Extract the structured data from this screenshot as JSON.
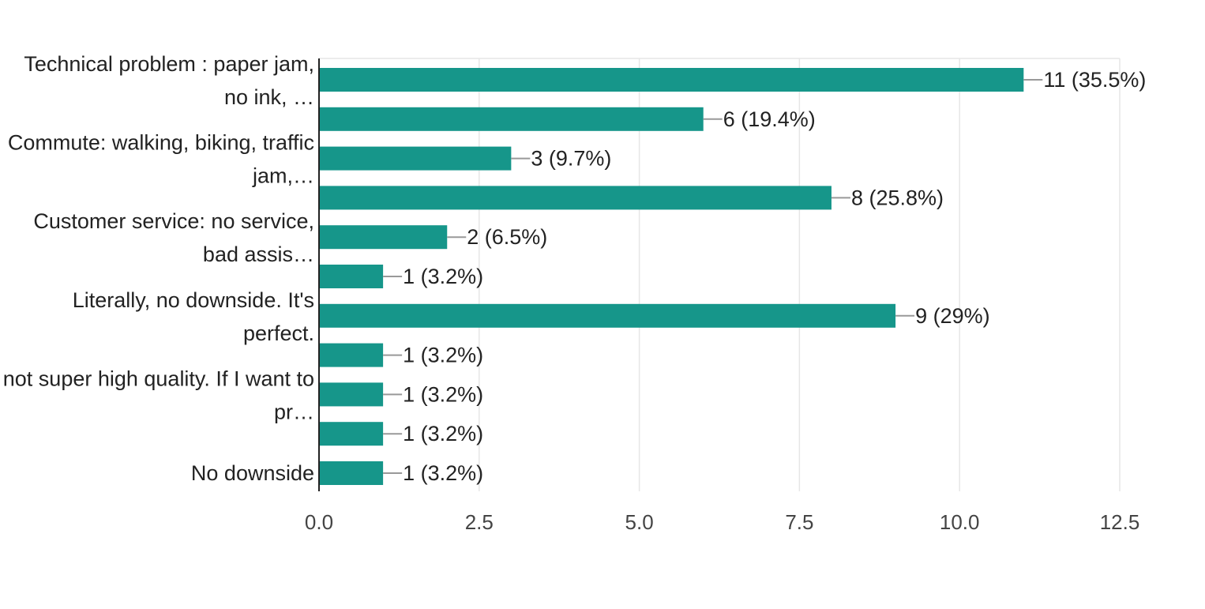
{
  "chart_data": {
    "type": "bar",
    "orientation": "horizontal",
    "categories": [
      "Technical problem : paper jam, no ink, …",
      "",
      "Commute: walking, biking, traffic jam,…",
      "",
      "Customer service: no service, bad assis…",
      "",
      "Literally, no downside. It's perfect.",
      "",
      "not super high quality. If I want to pr…",
      "",
      "No downside"
    ],
    "category_label_lines": [
      [
        "Technical problem : paper jam,",
        "no ink, …"
      ],
      [],
      [
        "Commute: walking, biking, traffic",
        "jam,…"
      ],
      [],
      [
        "Customer service: no service,",
        "bad assis…"
      ],
      [],
      [
        "Literally, no downside. It's",
        "perfect."
      ],
      [],
      [
        "not super high quality. If I want to",
        "pr…"
      ],
      [],
      [
        "No downside"
      ]
    ],
    "values": [
      11,
      6,
      3,
      8,
      2,
      1,
      9,
      1,
      1,
      1,
      1
    ],
    "data_labels": [
      "11 (35.5%)",
      "6 (19.4%)",
      "3 (9.7%)",
      "8 (25.8%)",
      "2 (6.5%)",
      "1 (3.2%)",
      "9 (29%)",
      "1 (3.2%)",
      "1 (3.2%)",
      "1 (3.2%)",
      "1 (3.2%)"
    ],
    "xlim": [
      0,
      12.5
    ],
    "xticks": [
      "0.0",
      "2.5",
      "5.0",
      "7.5",
      "10.0",
      "12.5"
    ],
    "title": "",
    "xlabel": "",
    "ylabel": "",
    "grid": true,
    "legend": "none",
    "colors": {
      "bar": "#16968a",
      "grid": "#e6e6e6",
      "axis": "#222222",
      "leader": "#999999"
    }
  }
}
